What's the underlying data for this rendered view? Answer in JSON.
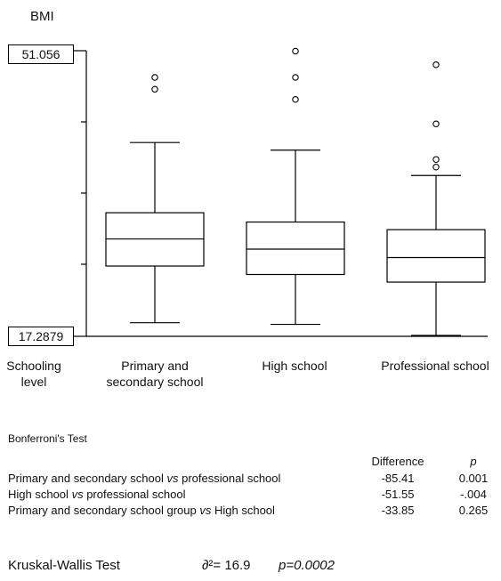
{
  "chart_data": {
    "type": "box",
    "ylabel": "BMI",
    "xlabel": "Schooling level",
    "ytick_labels": [
      "51.056",
      "17.2879"
    ],
    "ylim": [
      17.2879,
      51.056
    ],
    "categories": [
      "Primary and secondary school",
      "High school",
      "Professional school"
    ],
    "category_label_lines": [
      [
        "Primary and",
        "secondary school"
      ],
      [
        "High school"
      ],
      [
        "Professional school"
      ]
    ],
    "boxes": [
      {
        "whisker_low": 18.9,
        "q1": 25.6,
        "median": 28.8,
        "q3": 31.9,
        "whisker_high": 40.2,
        "outliers": [
          46.5,
          47.9
        ]
      },
      {
        "whisker_low": 18.7,
        "q1": 24.6,
        "median": 27.6,
        "q3": 30.8,
        "whisker_high": 39.3,
        "outliers": [
          45.3,
          47.9,
          51.0
        ]
      },
      {
        "whisker_low": 17.4,
        "q1": 23.7,
        "median": 26.6,
        "q3": 29.9,
        "whisker_high": 36.3,
        "outliers": [
          37.3,
          38.2,
          42.4,
          49.4
        ]
      }
    ]
  },
  "schooling_label_lines": [
    "Schooling",
    "level"
  ],
  "bonferroni": {
    "title": "Bonferroni's Test",
    "col_difference": "Difference",
    "col_p": "p",
    "rows": [
      {
        "a": "Primary and secondary school",
        "vs": "vs",
        "b": "professional school",
        "difference": "-85.41",
        "p": "0.001"
      },
      {
        "a": "High school",
        "vs": "vs",
        "b": "professional school",
        "difference": "-51.55",
        "p": "-.004"
      },
      {
        "a": "Primary and secondary school group",
        "vs": "vs",
        "b": "High school",
        "difference": "-33.85",
        "p": "0.265"
      }
    ]
  },
  "kruskal": {
    "label": "Kruskal-Wallis Test",
    "stat": "∂²= 16.9",
    "p": "p=0.0002"
  }
}
